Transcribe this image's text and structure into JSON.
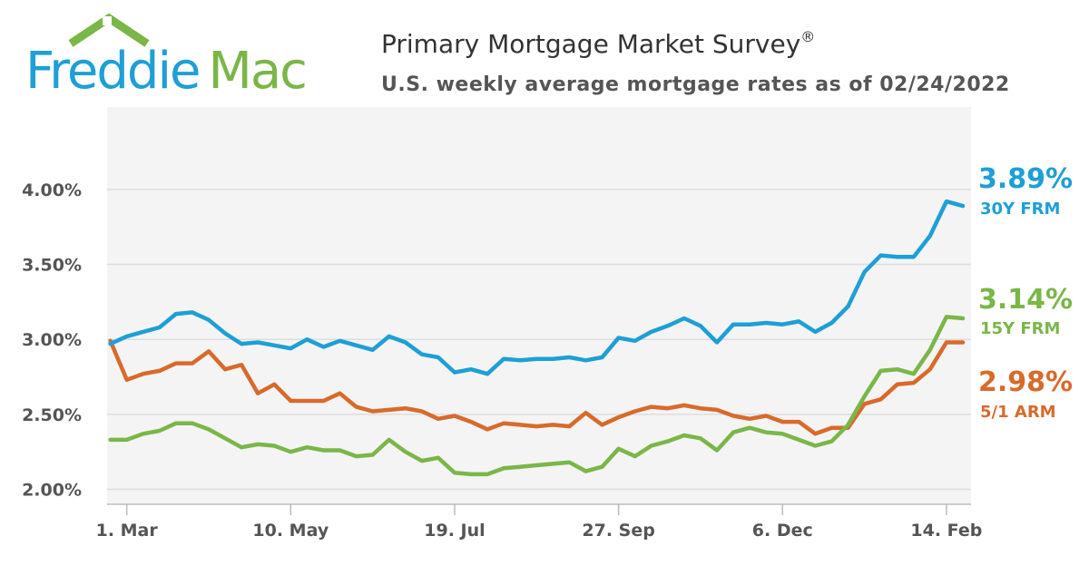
{
  "logo": {
    "part1": "Freddie",
    "part2": "Mac",
    "blue": "#1e9fd6",
    "green": "#7ab648"
  },
  "chart_data": {
    "type": "line",
    "title": "Primary Mortgage Market Survey",
    "title_mark": "®",
    "subtitle": "U.S. weekly average mortgage rates as of 02/24/2022",
    "ylim": [
      1.9,
      4.55
    ],
    "yticks": [
      {
        "value": 2.0,
        "label": "2.00%"
      },
      {
        "value": 2.5,
        "label": "2.50%"
      },
      {
        "value": 3.0,
        "label": "3.00%"
      },
      {
        "value": 3.5,
        "label": "3.50%"
      },
      {
        "value": 4.0,
        "label": "4.00%"
      }
    ],
    "x_range": [
      -0.2,
      52.5
    ],
    "xticks": [
      {
        "index": 1,
        "label": "1. Mar"
      },
      {
        "index": 11,
        "label": "10. May"
      },
      {
        "index": 21,
        "label": "19. Jul"
      },
      {
        "index": 31,
        "label": "27. Sep"
      },
      {
        "index": 41,
        "label": "6. Dec"
      },
      {
        "index": 51,
        "label": "14. Feb"
      }
    ],
    "series": [
      {
        "name": "30Y FRM",
        "color": "#1e9fd6",
        "latest": "3.89%",
        "values": [
          2.97,
          3.02,
          3.05,
          3.08,
          3.17,
          3.18,
          3.13,
          3.04,
          2.97,
          2.98,
          2.96,
          2.94,
          3.0,
          2.95,
          2.99,
          2.96,
          2.93,
          3.02,
          2.98,
          2.9,
          2.88,
          2.78,
          2.8,
          2.77,
          2.87,
          2.86,
          2.87,
          2.87,
          2.88,
          2.86,
          2.88,
          3.01,
          2.99,
          3.05,
          3.09,
          3.14,
          3.09,
          2.98,
          3.1,
          3.1,
          3.11,
          3.1,
          3.12,
          3.05,
          3.11,
          3.22,
          3.45,
          3.56,
          3.55,
          3.55,
          3.69,
          3.92,
          3.89
        ]
      },
      {
        "name": "15Y FRM",
        "color": "#7ab648",
        "latest": "3.14%",
        "values": [
          2.33,
          2.33,
          2.37,
          2.39,
          2.44,
          2.44,
          2.4,
          2.34,
          2.28,
          2.3,
          2.29,
          2.25,
          2.28,
          2.26,
          2.26,
          2.22,
          2.23,
          2.33,
          2.25,
          2.19,
          2.21,
          2.11,
          2.1,
          2.1,
          2.14,
          2.15,
          2.16,
          2.17,
          2.18,
          2.12,
          2.15,
          2.27,
          2.22,
          2.29,
          2.32,
          2.36,
          2.34,
          2.26,
          2.38,
          2.41,
          2.38,
          2.37,
          2.33,
          2.29,
          2.32,
          2.43,
          2.62,
          2.79,
          2.8,
          2.77,
          2.93,
          3.15,
          3.14
        ]
      },
      {
        "name": "5/1 ARM",
        "color": "#d86a2b",
        "latest": "2.98%",
        "values": [
          2.99,
          2.73,
          2.77,
          2.79,
          2.84,
          2.84,
          2.92,
          2.8,
          2.83,
          2.64,
          2.7,
          2.59,
          2.59,
          2.59,
          2.64,
          2.55,
          2.52,
          2.53,
          2.54,
          2.52,
          2.47,
          2.49,
          2.45,
          2.4,
          2.44,
          2.43,
          2.42,
          2.43,
          2.42,
          2.51,
          2.43,
          2.48,
          2.52,
          2.55,
          2.54,
          2.56,
          2.54,
          2.53,
          2.49,
          2.47,
          2.49,
          2.45,
          2.45,
          2.37,
          2.41,
          2.41,
          2.57,
          2.6,
          2.7,
          2.71,
          2.8,
          2.98,
          2.98
        ]
      }
    ]
  }
}
